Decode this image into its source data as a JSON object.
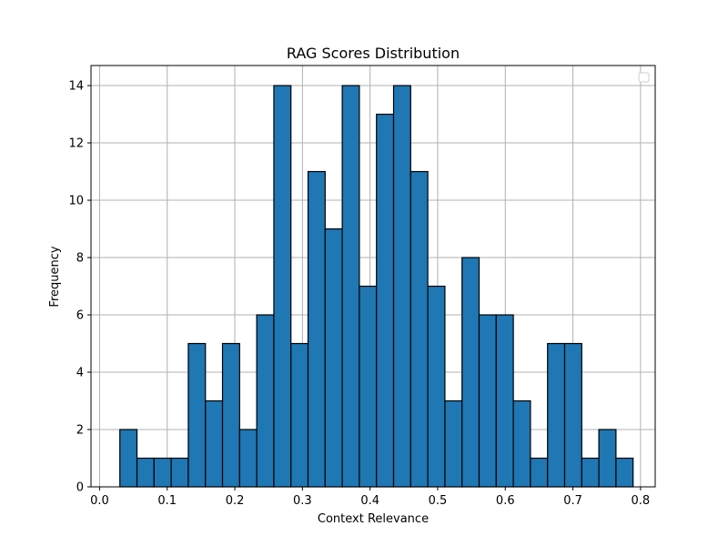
{
  "chart_data": {
    "type": "bar",
    "title": "RAG Scores Distribution",
    "xlabel": "Context Relevance",
    "ylabel": "Frequency",
    "xlim": [
      0.0,
      0.8
    ],
    "ylim": [
      0,
      14
    ],
    "grid": true,
    "legend": "top-right (empty)",
    "colors": {
      "bar_fill": "#1f77b4",
      "bar_edge": "#000000",
      "grid": "#b0b0b0"
    },
    "bin_start": 0.03,
    "bin_width": 0.0253,
    "values": [
      2,
      1,
      1,
      1,
      5,
      3,
      5,
      2,
      6,
      14,
      5,
      11,
      9,
      14,
      7,
      13,
      14,
      11,
      7,
      3,
      8,
      6,
      6,
      3,
      1,
      5,
      5,
      1,
      2,
      1
    ],
    "x_ticks": [
      0.0,
      0.1,
      0.2,
      0.3,
      0.4,
      0.5,
      0.6,
      0.7,
      0.8
    ],
    "x_tick_labels": [
      "0.0",
      "0.1",
      "0.2",
      "0.3",
      "0.4",
      "0.5",
      "0.6",
      "0.7",
      "0.8"
    ],
    "y_ticks": [
      0,
      2,
      4,
      6,
      8,
      10,
      12,
      14
    ],
    "y_tick_labels": [
      "0",
      "2",
      "4",
      "6",
      "8",
      "10",
      "12",
      "14"
    ]
  }
}
